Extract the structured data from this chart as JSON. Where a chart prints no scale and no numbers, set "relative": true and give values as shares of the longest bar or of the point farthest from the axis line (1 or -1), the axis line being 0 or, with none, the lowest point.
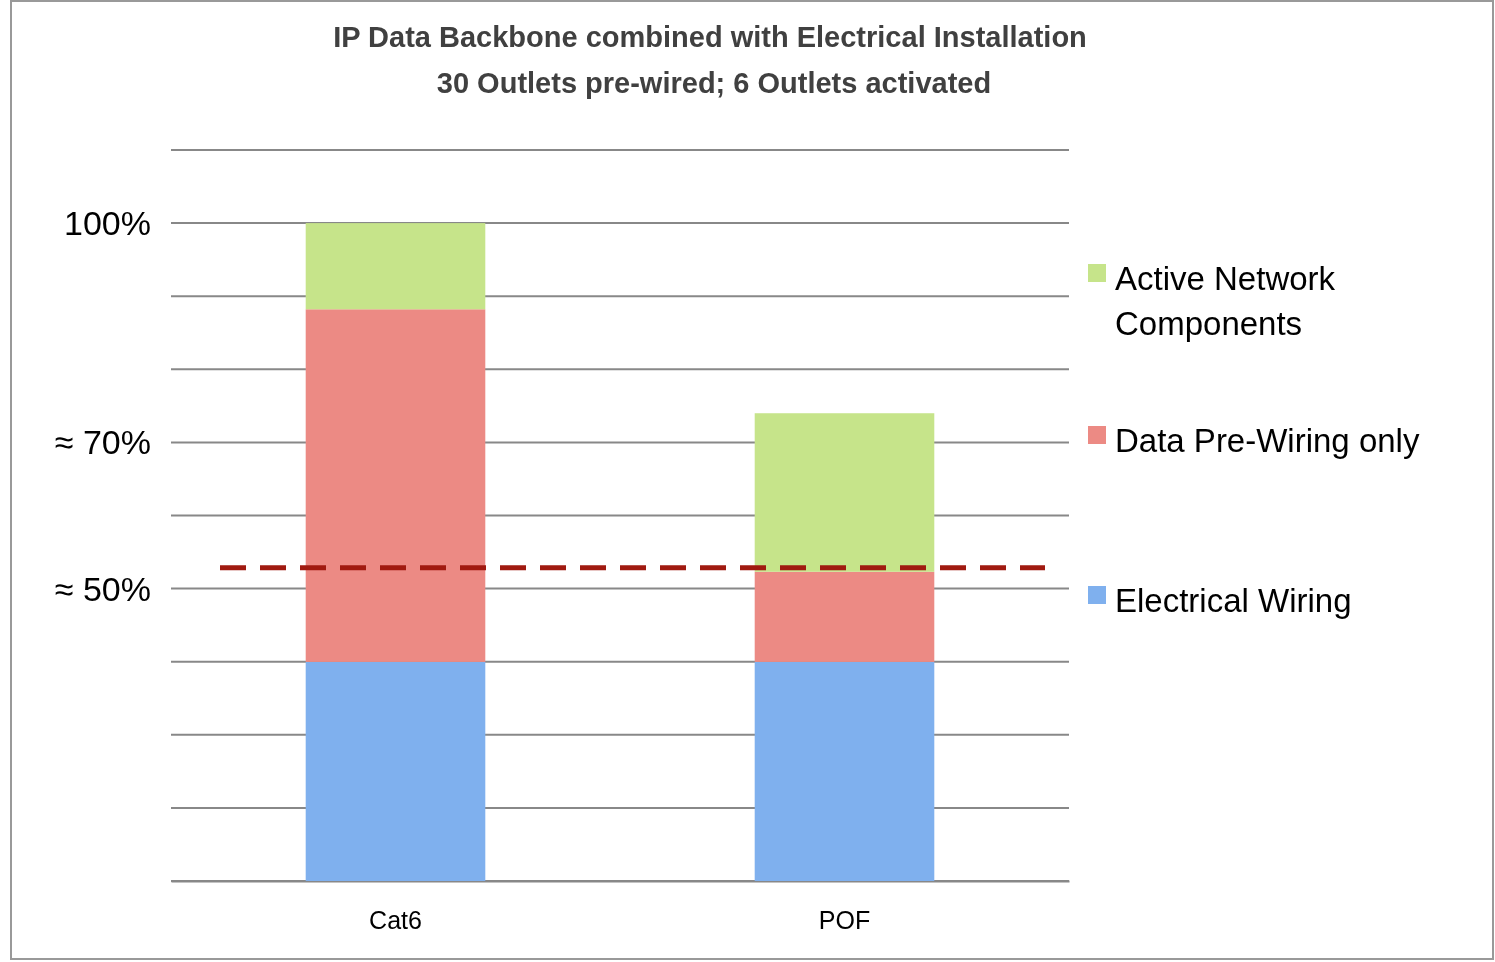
{
  "chart_data": {
    "type": "bar",
    "title": "IP Data Backbone combined with Electrical Installation",
    "subtitle": "30 Outlets pre-wired; 6 Outlets activated",
    "categories": [
      "Cat6",
      "POF"
    ],
    "stacked": true,
    "relative": true,
    "series": [
      {
        "name": "Electrical Wiring",
        "color": "#7fb0ee",
        "values": [
          0.333,
          0.333
        ]
      },
      {
        "name": "Data Pre-Wiring only",
        "color": "#ec8a84",
        "values": [
          0.536,
          0.137
        ]
      },
      {
        "name": "Active Network Components",
        "color": "#c6e48a",
        "values": [
          0.131,
          0.241
        ]
      }
    ],
    "annotations": [
      "100%",
      "≈ 70%",
      "≈ 50%"
    ],
    "grid": "y",
    "legend": "right",
    "ref_lines": [
      {
        "axis": "y",
        "value": 0.476,
        "color": "#a01a10",
        "line_style": "dashed"
      }
    ]
  }
}
